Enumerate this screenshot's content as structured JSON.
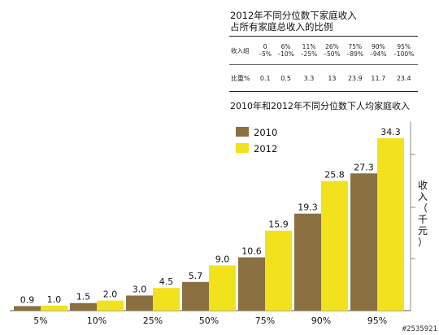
{
  "table": {
    "title_lines": [
      "2012年不同分位数下家庭收入",
      "占所有家庭总收入的比例"
    ],
    "header_label": "收入组",
    "value_label": "比重%",
    "groups": [
      [
        "0",
        "–5%"
      ],
      [
        "6%",
        "–10%"
      ],
      [
        "11%",
        "–25%"
      ],
      [
        "26%",
        "–50%"
      ],
      [
        "75%",
        "–89%"
      ],
      [
        "90%",
        "–94%"
      ],
      [
        "95%",
        "–100%"
      ]
    ],
    "values": [
      "0.1",
      "0.5",
      "3.3",
      "13",
      "23.9",
      "11.7",
      "23.4"
    ]
  },
  "watermark": "#2535921",
  "chart_data": {
    "type": "bar",
    "title": "2010年和2012年不同分位数下人均家庭收入",
    "ylabel": "收入（千元）",
    "categories": [
      "5%",
      "10%",
      "25%",
      "50%",
      "75%",
      "90%",
      "95%"
    ],
    "series": [
      {
        "name": "2010",
        "values": [
          0.9,
          1.5,
          3.0,
          5.7,
          10.6,
          19.3,
          27.3
        ],
        "labels": [
          "0.9",
          "1.5",
          "3.0",
          "5.7",
          "10.6",
          "19.3",
          "27.3"
        ]
      },
      {
        "name": "2012",
        "values": [
          1.0,
          2.0,
          4.5,
          9.0,
          15.9,
          25.8,
          34.3
        ],
        "labels": [
          "1.0",
          "2.0",
          "4.5",
          "9.0",
          "15.9",
          "25.8",
          "34.3"
        ]
      }
    ],
    "colors": {
      "2010": "#8a7040",
      "2012": "#f2e21e"
    },
    "legend": "top-left",
    "ylim": [
      0,
      38
    ],
    "grid": false
  }
}
